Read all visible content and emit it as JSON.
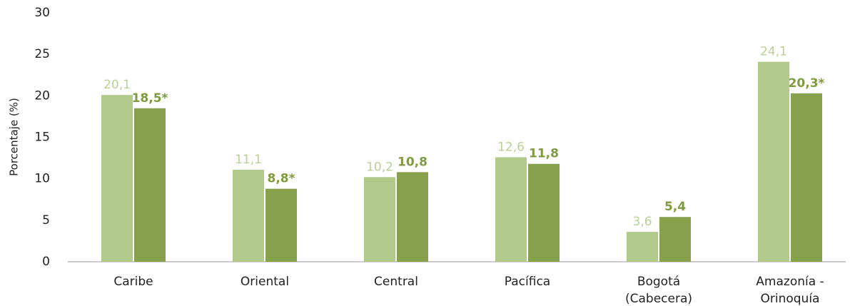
{
  "chart_data": {
    "type": "bar",
    "y_label": "Porcentaje (%)",
    "categories": [
      "Caribe",
      "Oriental",
      "Central",
      "Pacífica",
      "Bogotá (Cabecera)",
      "Amazonía - Orinoquía"
    ],
    "series": [
      {
        "color": "#b1c98b",
        "values": [
          20.1,
          11.1,
          10.2,
          12.6,
          3.6,
          24.1
        ],
        "value_labels": [
          "20,1",
          "11,1",
          "10,2",
          "12,6",
          "3,6",
          "24,1"
        ]
      },
      {
        "color": "#87a04b",
        "values": [
          18.5,
          8.8,
          10.8,
          11.8,
          5.4,
          20.3
        ],
        "value_labels": [
          "18,5*",
          "8,8*",
          "10,8",
          "11,8",
          "5,4",
          "20,3*"
        ]
      }
    ],
    "ylim": [
      0,
      30
    ],
    "yticks": [
      0,
      5,
      10,
      15,
      20,
      25,
      30
    ]
  }
}
